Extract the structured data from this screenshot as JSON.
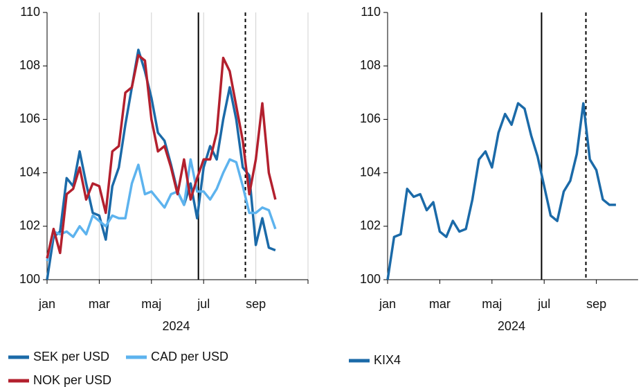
{
  "chart_data": [
    {
      "type": "line",
      "x_label": "2024",
      "x": [
        1.0,
        1.25,
        1.5,
        1.75,
        2.0,
        2.25,
        2.5,
        2.75,
        3.0,
        3.25,
        3.5,
        3.75,
        4.0,
        4.25,
        4.5,
        4.75,
        5.0,
        5.25,
        5.5,
        5.75,
        6.0,
        6.25,
        6.5,
        6.75,
        7.0,
        7.25,
        7.5,
        7.75,
        8.0,
        8.25,
        8.5,
        8.75,
        9.0,
        9.25,
        9.5,
        9.75
      ],
      "xlim": [
        1,
        11
      ],
      "xticks": [
        {
          "value": 1,
          "label": "jan"
        },
        {
          "value": 3,
          "label": "mar"
        },
        {
          "value": 5,
          "label": "maj"
        },
        {
          "value": 7,
          "label": "jul"
        },
        {
          "value": 9,
          "label": "sep"
        },
        {
          "value": 11,
          "label": ""
        }
      ],
      "ylim": [
        100,
        110
      ],
      "yticks": [
        100,
        102,
        104,
        106,
        108,
        110
      ],
      "grid": true,
      "vlines": [
        {
          "value": 6.8,
          "style": "solid"
        },
        {
          "value": 8.6,
          "style": "dashed"
        }
      ],
      "series": [
        {
          "name": "SEK per USD",
          "color": "#1b6aa8",
          "values": [
            100.0,
            101.6,
            101.8,
            103.8,
            103.5,
            104.8,
            103.6,
            102.5,
            102.4,
            101.5,
            103.5,
            104.2,
            105.8,
            107.2,
            108.6,
            107.8,
            106.8,
            105.5,
            105.2,
            104.3,
            103.3,
            102.8,
            103.6,
            102.3,
            104.2,
            105.0,
            104.5,
            106.0,
            107.2,
            106.0,
            104.2,
            103.9,
            101.3,
            102.3,
            101.2,
            101.1
          ]
        },
        {
          "name": "CAD per USD",
          "color": "#5db3ee",
          "values": [
            100.7,
            101.8,
            101.7,
            101.8,
            101.6,
            102.0,
            101.7,
            102.4,
            102.2,
            102.0,
            102.4,
            102.3,
            102.3,
            103.6,
            104.3,
            103.2,
            103.3,
            103.0,
            102.7,
            103.2,
            103.3,
            102.8,
            104.5,
            103.3,
            103.3,
            103.0,
            103.4,
            104.0,
            104.5,
            104.4,
            103.5,
            102.5,
            102.5,
            102.7,
            102.6,
            101.9
          ]
        },
        {
          "name": "NOK per USD",
          "color": "#b3202e",
          "values": [
            100.8,
            101.9,
            101.0,
            103.2,
            103.4,
            104.2,
            103.0,
            103.6,
            103.5,
            102.5,
            104.8,
            105.0,
            107.0,
            107.2,
            108.4,
            108.2,
            106.0,
            104.8,
            105.0,
            104.2,
            103.2,
            104.5,
            103.0,
            103.8,
            104.5,
            104.5,
            105.5,
            108.3,
            107.8,
            106.5,
            105.2,
            103.2,
            104.5,
            106.6,
            104.0,
            103.0
          ]
        }
      ]
    },
    {
      "type": "line",
      "x_label": "2024",
      "x": [
        1.0,
        1.25,
        1.5,
        1.75,
        2.0,
        2.25,
        2.5,
        2.75,
        3.0,
        3.25,
        3.5,
        3.75,
        4.0,
        4.25,
        4.5,
        4.75,
        5.0,
        5.25,
        5.5,
        5.75,
        6.0,
        6.25,
        6.5,
        6.75,
        7.0,
        7.25,
        7.5,
        7.75,
        8.0,
        8.25,
        8.5,
        8.75,
        9.0,
        9.25,
        9.5,
        9.75
      ],
      "xlim": [
        1,
        10.6
      ],
      "xticks": [
        {
          "value": 1,
          "label": "jan"
        },
        {
          "value": 3,
          "label": "mar"
        },
        {
          "value": 5,
          "label": "maj"
        },
        {
          "value": 7,
          "label": "jul"
        },
        {
          "value": 9,
          "label": "sep"
        }
      ],
      "ylim": [
        100,
        110
      ],
      "yticks": [
        100,
        102,
        104,
        106,
        108,
        110
      ],
      "grid": false,
      "vlines": [
        {
          "value": 6.9,
          "style": "solid"
        },
        {
          "value": 8.6,
          "style": "dashed"
        }
      ],
      "series": [
        {
          "name": "KIX4",
          "color": "#1b6aa8",
          "values": [
            100.0,
            101.6,
            101.7,
            103.4,
            103.1,
            103.2,
            102.6,
            102.9,
            101.8,
            101.6,
            102.2,
            101.8,
            101.9,
            103.0,
            104.5,
            104.8,
            104.2,
            105.5,
            106.2,
            105.8,
            106.6,
            106.4,
            105.4,
            104.6,
            103.5,
            102.4,
            102.2,
            103.3,
            103.7,
            104.7,
            106.6,
            104.5,
            104.1,
            103.0,
            102.8,
            102.8
          ]
        }
      ]
    }
  ]
}
